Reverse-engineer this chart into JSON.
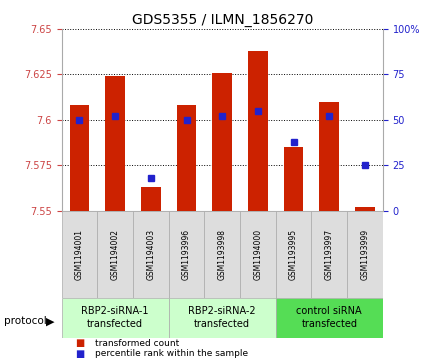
{
  "title": "GDS5355 / ILMN_1856270",
  "samples": [
    "GSM1194001",
    "GSM1194002",
    "GSM1194003",
    "GSM1193996",
    "GSM1193998",
    "GSM1194000",
    "GSM1193995",
    "GSM1193997",
    "GSM1193999"
  ],
  "transformed_counts": [
    7.608,
    7.624,
    7.563,
    7.608,
    7.626,
    7.638,
    7.585,
    7.61,
    7.552
  ],
  "percentile_ranks": [
    50,
    52,
    18,
    50,
    52,
    55,
    38,
    52,
    25
  ],
  "ylim_left": [
    7.55,
    7.65
  ],
  "ylim_right": [
    0,
    100
  ],
  "yticks_left": [
    7.55,
    7.575,
    7.6,
    7.625,
    7.65
  ],
  "yticks_right": [
    0,
    25,
    50,
    75,
    100
  ],
  "ytick_labels_left": [
    "7.55",
    "7.575",
    "7.6",
    "7.625",
    "7.65"
  ],
  "ytick_labels_right": [
    "0",
    "25",
    "50",
    "75",
    "100%"
  ],
  "groups": [
    {
      "label": "RBP2-siRNA-1\ntransfected",
      "indices": [
        0,
        1,
        2
      ],
      "facecolor": "#ccffcc"
    },
    {
      "label": "RBP2-siRNA-2\ntransfected",
      "indices": [
        3,
        4,
        5
      ],
      "facecolor": "#ccffcc"
    },
    {
      "label": "control siRNA\ntransfected",
      "indices": [
        6,
        7,
        8
      ],
      "facecolor": "#55dd55"
    }
  ],
  "bar_color": "#cc2200",
  "dot_color": "#2222cc",
  "bar_bottom": 7.55,
  "bar_width": 0.55,
  "legend_items": [
    {
      "color": "#cc2200",
      "label": "transformed count"
    },
    {
      "color": "#2222cc",
      "label": "percentile rank within the sample"
    }
  ],
  "protocol_label": "protocol",
  "tick_color_left": "#cc4444",
  "tick_color_right": "#2222cc",
  "sample_box_color": "#dddddd",
  "sample_box_edge": "#aaaaaa"
}
